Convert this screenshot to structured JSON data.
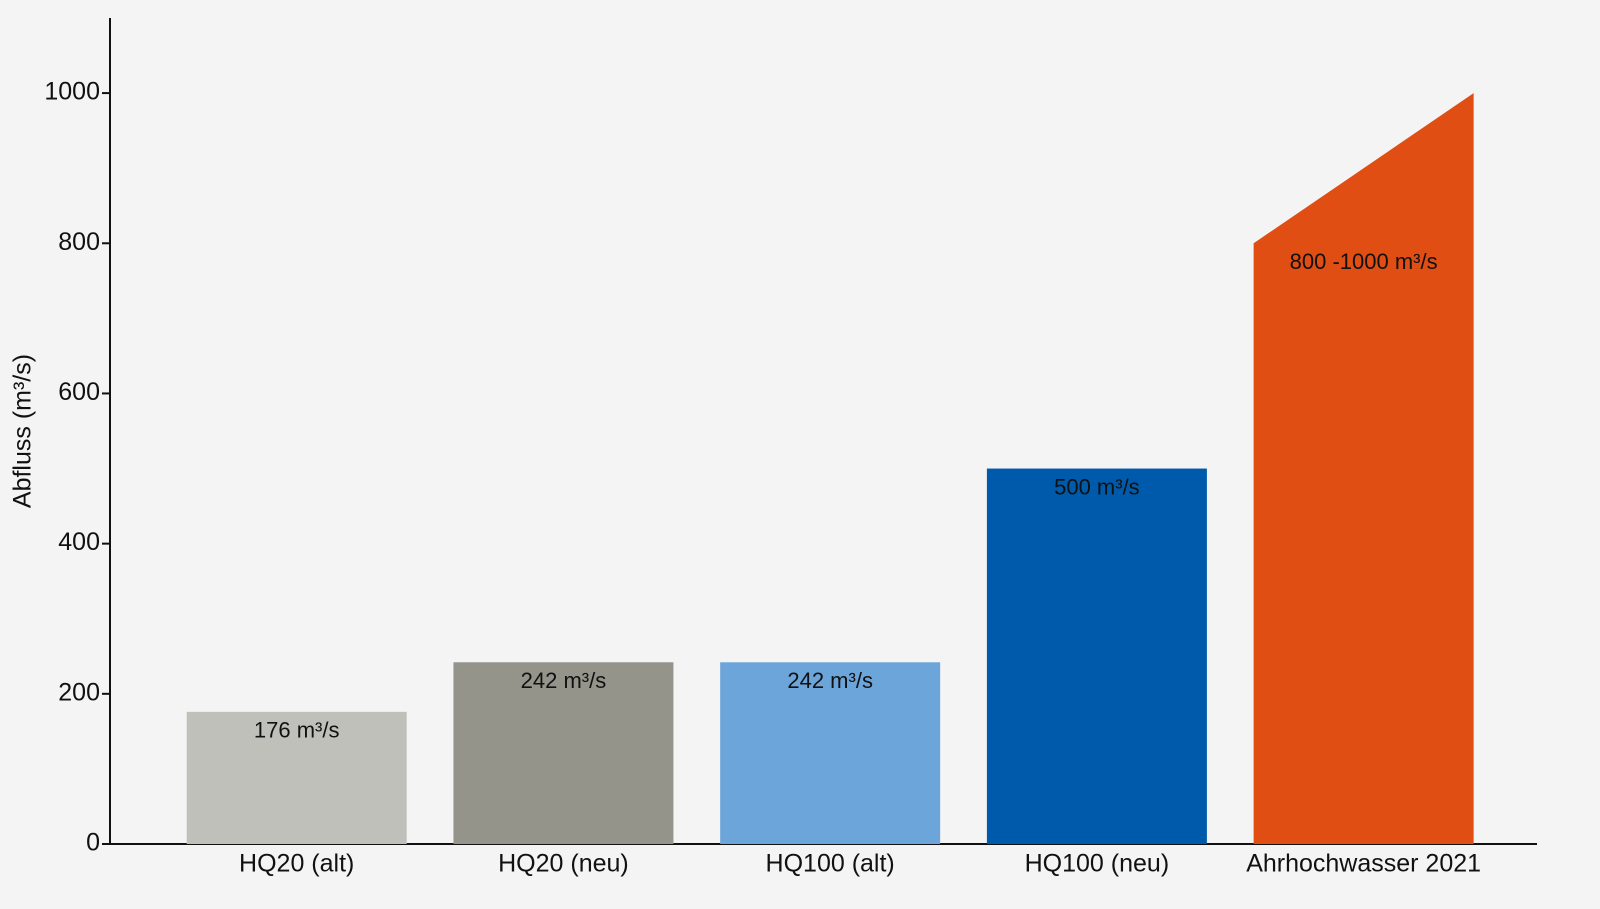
{
  "chart_data": {
    "type": "bar",
    "ylabel": "Abfluss (m³/s)",
    "categories": [
      "HQ20 (alt)",
      "HQ20 (neu)",
      "HQ100 (alt)",
      "HQ100 (neu)",
      "Ahrhochwasser 2021"
    ],
    "values": [
      176,
      242,
      242,
      500,
      800
    ],
    "values_high": [
      null,
      null,
      null,
      null,
      1000
    ],
    "value_labels": [
      "176 m³/s",
      "242 m³/s",
      "242 m³/s",
      "500 m³/s",
      "800 -1000 m³/s"
    ],
    "colors": [
      "#c0c0ba",
      "#94948b",
      "#6ca5da",
      "#005aab",
      "#e04e14"
    ],
    "ylim": [
      0,
      1100
    ],
    "yticks": [
      0,
      200,
      400,
      600,
      800,
      1000
    ],
    "grid": false
  }
}
